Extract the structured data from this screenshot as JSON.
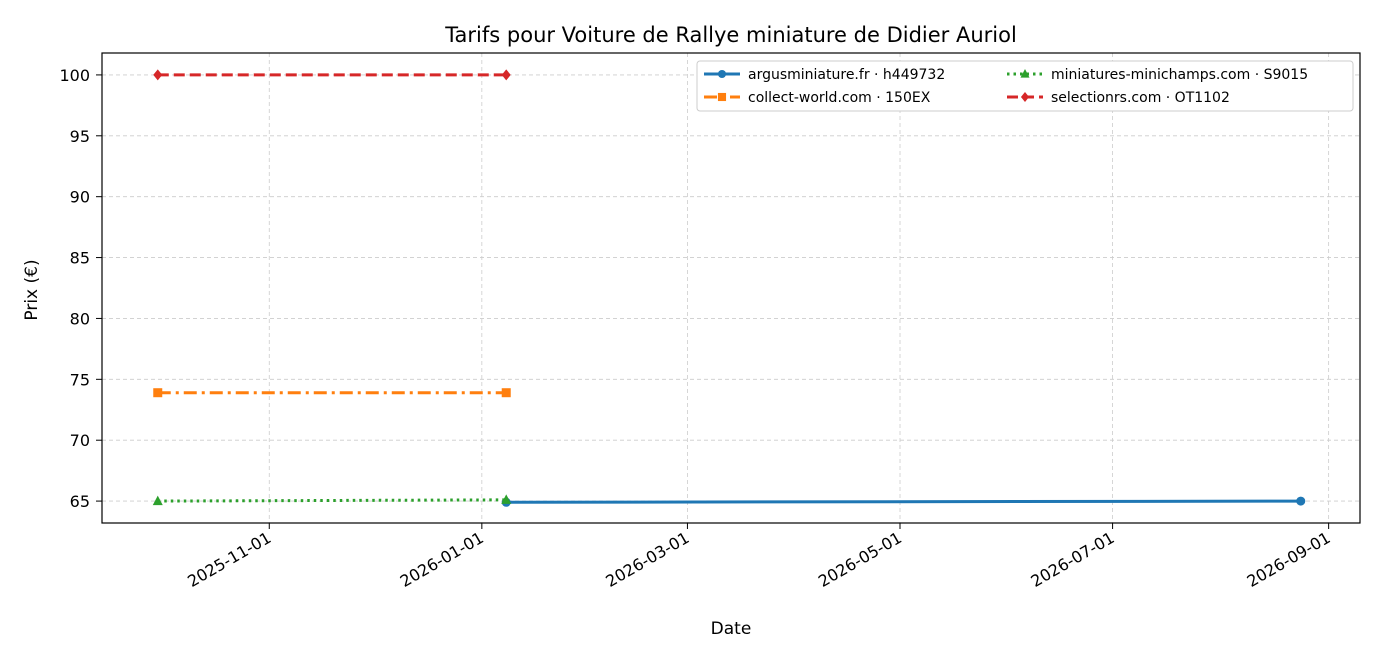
{
  "chart_data": {
    "type": "line",
    "title": "Tarifs pour Voiture de Rallye miniature de Didier Auriol",
    "xlabel": "Date",
    "ylabel": "Prix (€)",
    "xlim": [
      "2025-09-14",
      "2026-09-10"
    ],
    "ylim": [
      63.2,
      101.8
    ],
    "x_ticks": [
      "2025-11-01",
      "2026-01-01",
      "2026-03-01",
      "2026-05-01",
      "2026-07-01",
      "2026-09-01"
    ],
    "y_ticks": [
      65,
      70,
      75,
      80,
      85,
      90,
      95,
      100
    ],
    "grid": true,
    "legend_position": "top-right",
    "series": [
      {
        "name": "argusminiature.fr · h449732",
        "color": "#1f77b4",
        "marker": "circle",
        "linestyle": "solid",
        "points": [
          {
            "x": "2026-01-08",
            "y": 64.9
          },
          {
            "x": "2026-08-24",
            "y": 65.0
          }
        ]
      },
      {
        "name": "collect-world.com · 150EX",
        "color": "#ff7f0e",
        "marker": "square",
        "linestyle": "dashdot",
        "points": [
          {
            "x": "2025-09-30",
            "y": 73.9
          },
          {
            "x": "2026-01-08",
            "y": 73.9
          }
        ]
      },
      {
        "name": "miniatures-minichamps.com · S9015",
        "color": "#2ca02c",
        "marker": "triangle",
        "linestyle": "dotted",
        "points": [
          {
            "x": "2025-09-30",
            "y": 65.0
          },
          {
            "x": "2026-01-08",
            "y": 65.1
          }
        ]
      },
      {
        "name": "selectionrs.com · OT1102",
        "color": "#d62728",
        "marker": "diamond",
        "linestyle": "dashed",
        "points": [
          {
            "x": "2025-09-30",
            "y": 100.0
          },
          {
            "x": "2026-01-08",
            "y": 100.0
          }
        ]
      }
    ]
  }
}
